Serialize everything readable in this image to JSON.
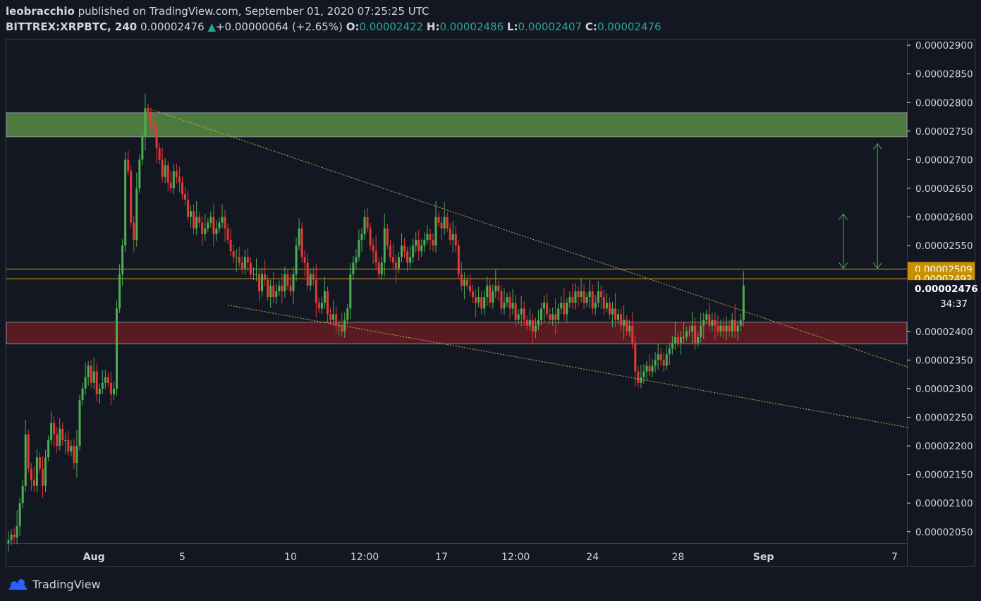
{
  "header": {
    "author": "leobracchio",
    "published": "published on TradingView.com, September 01, 2020 07:25:25 UTC",
    "symbol": "BITTREX:XRPBTC, 240",
    "last": "0.00002476",
    "change_arrow": "▲",
    "change": "+0.00000064 (+2.65%)",
    "o_label": "O:",
    "o": "0.00002422",
    "h_label": "H:",
    "h": "0.00002486",
    "l_label": "L:",
    "l": "0.00002407",
    "c_label": "C:",
    "c": "0.00002476"
  },
  "footer": {
    "brand": "TradingView"
  },
  "colors": {
    "background": "#131722",
    "up": "#4caf50",
    "down": "#e53935",
    "resistance_zone": "#4f7a3f",
    "support_zone": "#5a1a22",
    "level_line": "#d4a017",
    "trendline": "#c9b24a",
    "arrow": "#4caf50"
  },
  "chart_data": {
    "type": "candlestick",
    "timeframe": "240",
    "ylim": [
      2.03e-05,
      2.91e-05
    ],
    "y_ticks": [
      "0.00002900",
      "0.00002850",
      "0.00002800",
      "0.00002750",
      "0.00002700",
      "0.00002650",
      "0.00002600",
      "0.00002550",
      "0.00002476",
      "0.00002400",
      "0.00002350",
      "0.00002300",
      "0.00002250",
      "0.00002200",
      "0.00002150",
      "0.00002100",
      "0.00002050"
    ],
    "y_tick_values": [
      2.9e-05,
      2.85e-05,
      2.8e-05,
      2.75e-05,
      2.7e-05,
      2.65e-05,
      2.6e-05,
      2.55e-05,
      2.476e-05,
      2.4e-05,
      2.35e-05,
      2.3e-05,
      2.25e-05,
      2.2e-05,
      2.15e-05,
      2.1e-05,
      2.05e-05
    ],
    "x_ticks": [
      {
        "label": "Aug",
        "bar": 30
      },
      {
        "label": "5",
        "bar": 61
      },
      {
        "label": "10",
        "bar": 99
      },
      {
        "label": "12:00",
        "bar": 125
      },
      {
        "label": "17",
        "bar": 152
      },
      {
        "label": "12:00",
        "bar": 178
      },
      {
        "label": "24",
        "bar": 205
      },
      {
        "label": "28",
        "bar": 235
      },
      {
        "label": "Sep",
        "bar": 265
      },
      {
        "label": "7",
        "bar": 311
      }
    ],
    "countdown": "34:37",
    "price_labels": [
      {
        "text": "0.00002509",
        "value": 2.509e-05
      },
      {
        "text": "0.00002492",
        "value": 2.492e-05
      }
    ],
    "last_price_label": {
      "text": "0.00002476",
      "value": 2.476e-05
    },
    "zones": [
      {
        "name": "resistance",
        "low": 2.74e-05,
        "high": 2.782e-05
      },
      {
        "name": "support",
        "low": 2.378e-05,
        "high": 2.416e-05
      }
    ],
    "horizontal_lines": [
      2.509e-05,
      2.492e-05
    ],
    "trendlines": [
      {
        "from_bar": 49,
        "from": 2.79e-05,
        "to_bar": 316,
        "to": 2.337e-05
      },
      {
        "from_bar": 77,
        "from": 2.446e-05,
        "to_bar": 316,
        "to": 2.232e-05
      }
    ],
    "measure_arrows": [
      {
        "bar": 293,
        "from": 2.51e-05,
        "to": 2.605e-05
      },
      {
        "bar": 305,
        "from": 2.51e-05,
        "to": 2.728e-05
      }
    ],
    "closes": [
      2.035,
      2.045,
      2.04,
      2.06,
      2.1,
      2.13,
      2.22,
      2.16,
      2.14,
      2.13,
      2.18,
      2.16,
      2.13,
      2.18,
      2.21,
      2.24,
      2.22,
      2.2,
      2.23,
      2.21,
      2.21,
      2.19,
      2.2,
      2.17,
      2.2,
      2.28,
      2.3,
      2.32,
      2.34,
      2.31,
      2.33,
      2.29,
      2.3,
      2.31,
      2.32,
      2.31,
      2.29,
      2.3,
      2.44,
      2.5,
      2.55,
      2.7,
      2.68,
      2.59,
      2.56,
      2.65,
      2.7,
      2.74,
      2.79,
      2.78,
      2.76,
      2.75,
      2.72,
      2.7,
      2.67,
      2.69,
      2.66,
      2.65,
      2.68,
      2.67,
      2.66,
      2.64,
      2.63,
      2.6,
      2.61,
      2.58,
      2.6,
      2.59,
      2.57,
      2.58,
      2.59,
      2.6,
      2.57,
      2.58,
      2.59,
      2.6,
      2.58,
      2.56,
      2.54,
      2.53,
      2.53,
      2.52,
      2.51,
      2.53,
      2.52,
      2.5,
      2.5,
      2.5,
      2.47,
      2.5,
      2.49,
      2.46,
      2.48,
      2.46,
      2.47,
      2.48,
      2.47,
      2.5,
      2.48,
      2.47,
      2.5,
      2.55,
      2.58,
      2.53,
      2.52,
      2.48,
      2.5,
      2.49,
      2.45,
      2.44,
      2.45,
      2.47,
      2.43,
      2.42,
      2.43,
      2.41,
      2.41,
      2.4,
      2.42,
      2.44,
      2.5,
      2.52,
      2.53,
      2.56,
      2.57,
      2.6,
      2.58,
      2.55,
      2.54,
      2.52,
      2.5,
      2.52,
      2.58,
      2.55,
      2.53,
      2.52,
      2.51,
      2.53,
      2.55,
      2.54,
      2.52,
      2.53,
      2.55,
      2.56,
      2.54,
      2.55,
      2.56,
      2.57,
      2.56,
      2.55,
      2.6,
      2.59,
      2.58,
      2.6,
      2.58,
      2.56,
      2.57,
      2.55,
      2.5,
      2.48,
      2.49,
      2.48,
      2.47,
      2.46,
      2.45,
      2.46,
      2.44,
      2.46,
      2.48,
      2.45,
      2.47,
      2.48,
      2.47,
      2.44,
      2.45,
      2.46,
      2.44,
      2.45,
      2.42,
      2.43,
      2.44,
      2.42,
      2.41,
      2.42,
      2.4,
      2.41,
      2.42,
      2.44,
      2.45,
      2.43,
      2.42,
      2.43,
      2.42,
      2.44,
      2.45,
      2.43,
      2.45,
      2.46,
      2.45,
      2.47,
      2.46,
      2.47,
      2.45,
      2.46,
      2.47,
      2.44,
      2.45,
      2.47,
      2.46,
      2.44,
      2.45,
      2.43,
      2.44,
      2.42,
      2.43,
      2.41,
      2.42,
      2.4,
      2.41,
      2.38,
      2.33,
      2.31,
      2.32,
      2.33,
      2.34,
      2.33,
      2.34,
      2.35,
      2.36,
      2.35,
      2.34,
      2.36,
      2.37,
      2.38,
      2.39,
      2.38,
      2.39,
      2.39,
      2.4,
      2.4,
      2.41,
      2.38,
      2.39,
      2.41,
      2.42,
      2.43,
      2.41,
      2.42,
      2.41,
      2.4,
      2.41,
      2.4,
      2.41,
      2.4,
      2.42,
      2.4,
      2.41,
      2.42,
      2.48
    ]
  }
}
